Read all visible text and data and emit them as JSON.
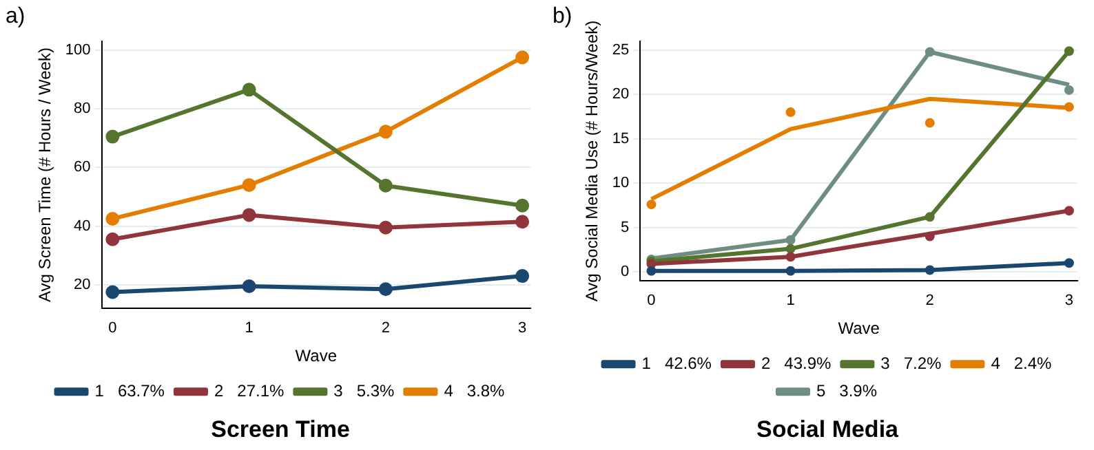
{
  "chart_data": [
    {
      "type": "line",
      "title": "Screen Time",
      "xlabel": "Wave",
      "ylabel": "Avg Screen Time (# Hours / Week)",
      "annotations": [
        "a)"
      ],
      "x": [
        0,
        1,
        2,
        3
      ],
      "xlim": [
        -0.08,
        3.06
      ],
      "xticks": [
        0,
        1,
        2,
        3
      ],
      "ylim": [
        12,
        103
      ],
      "yticks": [
        20,
        40,
        60,
        80,
        100
      ],
      "grid": "y",
      "legend": "bottom",
      "marker": "circle",
      "line_style": "solid",
      "series": [
        {
          "name": "1   63.7%",
          "color": "#1a476f",
          "values": [
            17.5,
            19.5,
            18.5,
            23
          ]
        },
        {
          "name": "2   27.1%",
          "color": "#90353b",
          "values": [
            35.5,
            43.8,
            39.5,
            41.5
          ]
        },
        {
          "name": "3   5.3%",
          "color": "#55752f",
          "values": [
            70.5,
            86.5,
            53.8,
            47
          ]
        },
        {
          "name": "4   3.8%",
          "color": "#e37e00",
          "values": [
            42.5,
            54,
            72.2,
            97.5
          ]
        }
      ]
    },
    {
      "type": "line",
      "title": "Social Media",
      "xlabel": "Wave",
      "ylabel": "Avg Social Media Use (# Hours/Week)",
      "annotations": [
        "b)"
      ],
      "x": [
        0,
        1,
        2,
        3
      ],
      "xlim": [
        -0.08,
        3.06
      ],
      "xticks": [
        0,
        1,
        2,
        3
      ],
      "ylim": [
        -1,
        26
      ],
      "yticks": [
        0,
        5,
        10,
        15,
        20,
        25
      ],
      "grid": "y",
      "legend": "bottom",
      "marker": "none",
      "line_style": "solid",
      "series": [
        {
          "name": "1   42.6%",
          "color": "#1a476f",
          "values": [
            0.1,
            0.1,
            0.2,
            1.0
          ]
        },
        {
          "name": "2   43.9%",
          "color": "#90353b",
          "values": [
            0.9,
            1.7,
            4.3,
            6.9
          ]
        },
        {
          "name": "3   7.2%",
          "color": "#55752f",
          "values": [
            1.2,
            2.6,
            6.2,
            24.9
          ]
        },
        {
          "name": "4   2.4%",
          "color": "#e37e00",
          "values": [
            8.2,
            16.1,
            19.5,
            18.5
          ]
        },
        {
          "name": "5   3.9%",
          "color": "#6e8e84",
          "values": [
            1.5,
            3.6,
            24.8,
            21.1
          ]
        },
        {
          "type": "scatter",
          "marker": "circle",
          "color": "#1a476f",
          "values": [
            0.1,
            0.1,
            0.2,
            1.0
          ]
        },
        {
          "type": "scatter",
          "marker": "circle",
          "color": "#90353b",
          "values": [
            0.9,
            1.7,
            4.0,
            6.9
          ]
        },
        {
          "type": "scatter",
          "marker": "circle",
          "color": "#55752f",
          "values": [
            1.2,
            2.6,
            6.2,
            24.9
          ]
        },
        {
          "type": "scatter",
          "marker": "circle",
          "color": "#e37e00",
          "values": [
            7.6,
            18.0,
            16.8,
            18.6
          ]
        },
        {
          "type": "scatter",
          "marker": "circle",
          "color": "#6e8e84",
          "values": [
            1.4,
            3.6,
            24.8,
            20.5
          ]
        }
      ]
    }
  ]
}
